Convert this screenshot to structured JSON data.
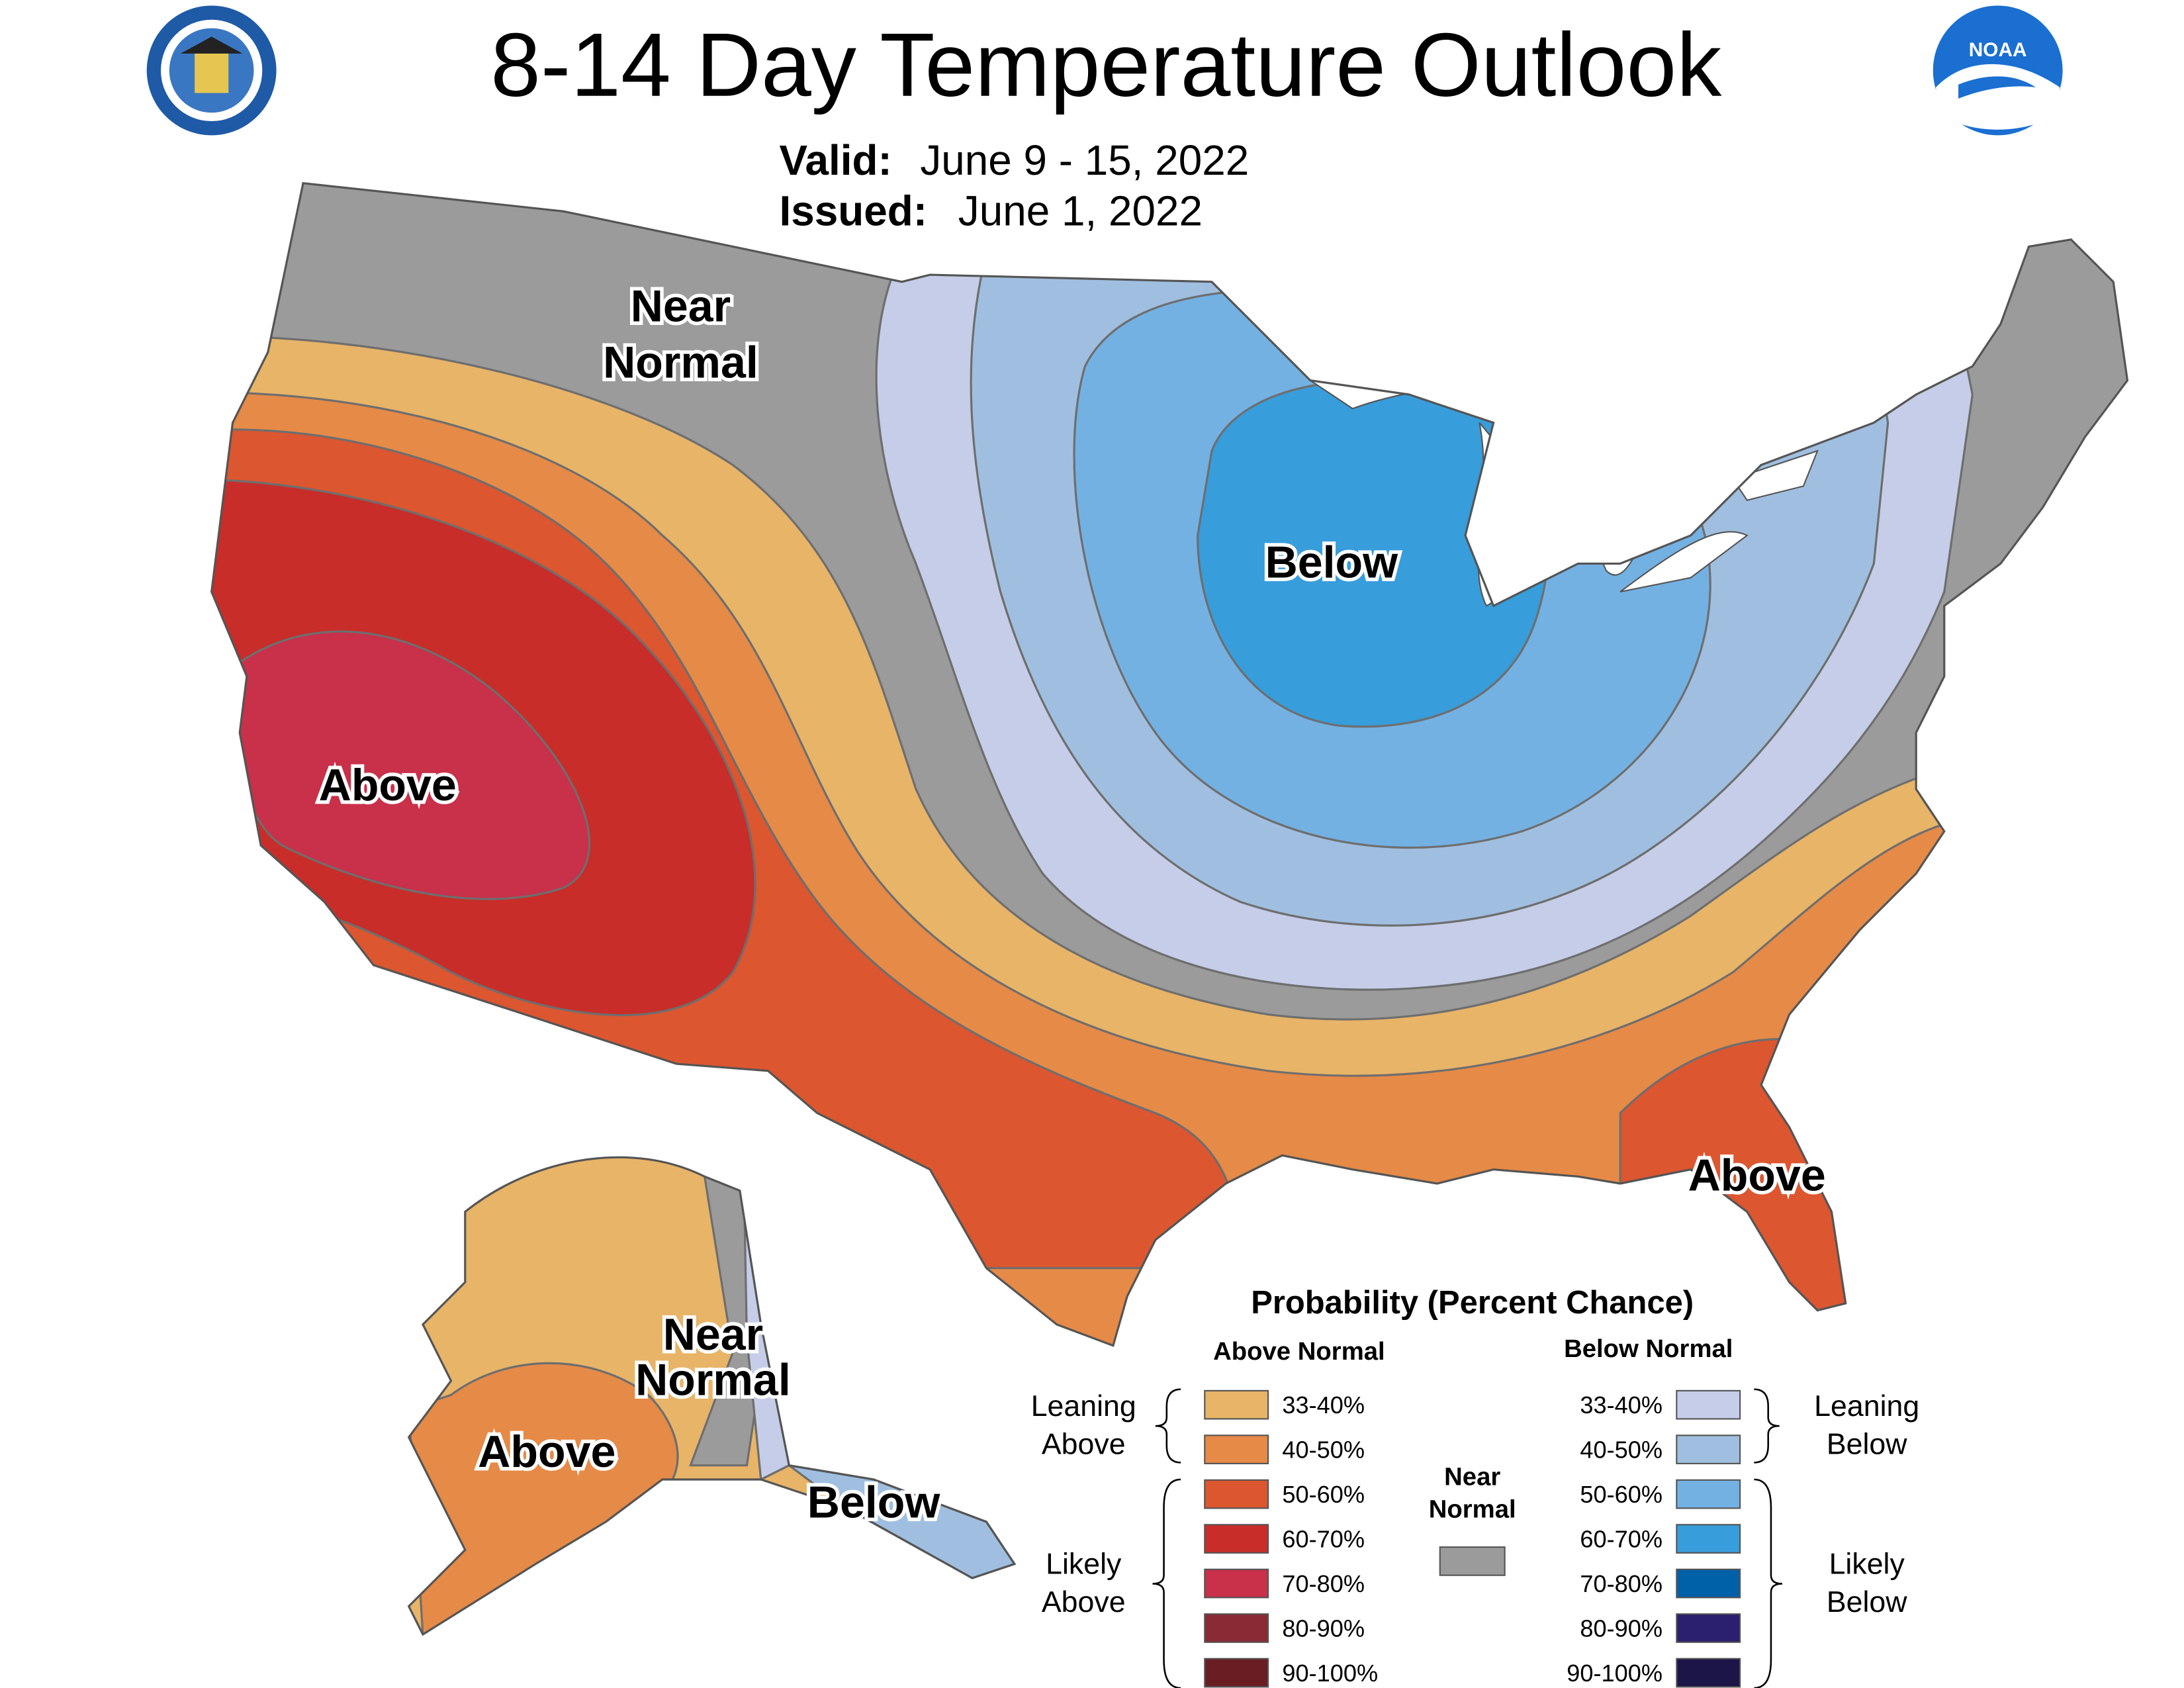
{
  "title": "8-14 Day Temperature Outlook",
  "valid_label": "Valid:",
  "valid_date": "June 9 - 15, 2022",
  "issued_label": "Issued:",
  "issued_date": "June 1, 2022",
  "logo_text": "NOAA",
  "map_labels": [
    {
      "lines": [
        "Near",
        "Normal"
      ]
    },
    {
      "lines": [
        "Below"
      ]
    },
    {
      "lines": [
        "Above"
      ]
    },
    {
      "lines": [
        "Above"
      ]
    },
    {
      "lines": [
        "Near",
        "Normal"
      ]
    },
    {
      "lines": [
        "Above"
      ]
    },
    {
      "lines": [
        "Below"
      ]
    }
  ],
  "legend": {
    "title": "Probability (Percent Chance)",
    "above": {
      "heading": "Above Normal",
      "entries": [
        {
          "label": "33-40%",
          "color": "#e8b468"
        },
        {
          "label": "40-50%",
          "color": "#e68a47"
        },
        {
          "label": "50-60%",
          "color": "#dc5630"
        },
        {
          "label": "60-70%",
          "color": "#c82d29"
        },
        {
          "label": "70-80%",
          "color": "#c9304a"
        },
        {
          "label": "80-90%",
          "color": "#8a2a35"
        },
        {
          "label": "90-100%",
          "color": "#6a1e24"
        }
      ]
    },
    "below": {
      "heading": "Below Normal",
      "entries": [
        {
          "label": "33-40%",
          "color": "#c5cde8"
        },
        {
          "label": "40-50%",
          "color": "#a0bfe0"
        },
        {
          "label": "50-60%",
          "color": "#74b1e3"
        },
        {
          "label": "60-70%",
          "color": "#389ddb"
        },
        {
          "label": "70-80%",
          "color": "#0060a8"
        },
        {
          "label": "80-90%",
          "color": "#2b1f6f"
        },
        {
          "label": "90-100%",
          "color": "#1b1548"
        }
      ]
    },
    "near_normal": {
      "lines": [
        "Near",
        "Normal"
      ],
      "color": "#9b9b9b"
    },
    "leaning_above": [
      "Leaning",
      "Above"
    ],
    "likely_above": [
      "Likely",
      "Above"
    ],
    "leaning_below": [
      "Leaning",
      "Below"
    ],
    "likely_below": [
      "Likely",
      "Below"
    ]
  }
}
